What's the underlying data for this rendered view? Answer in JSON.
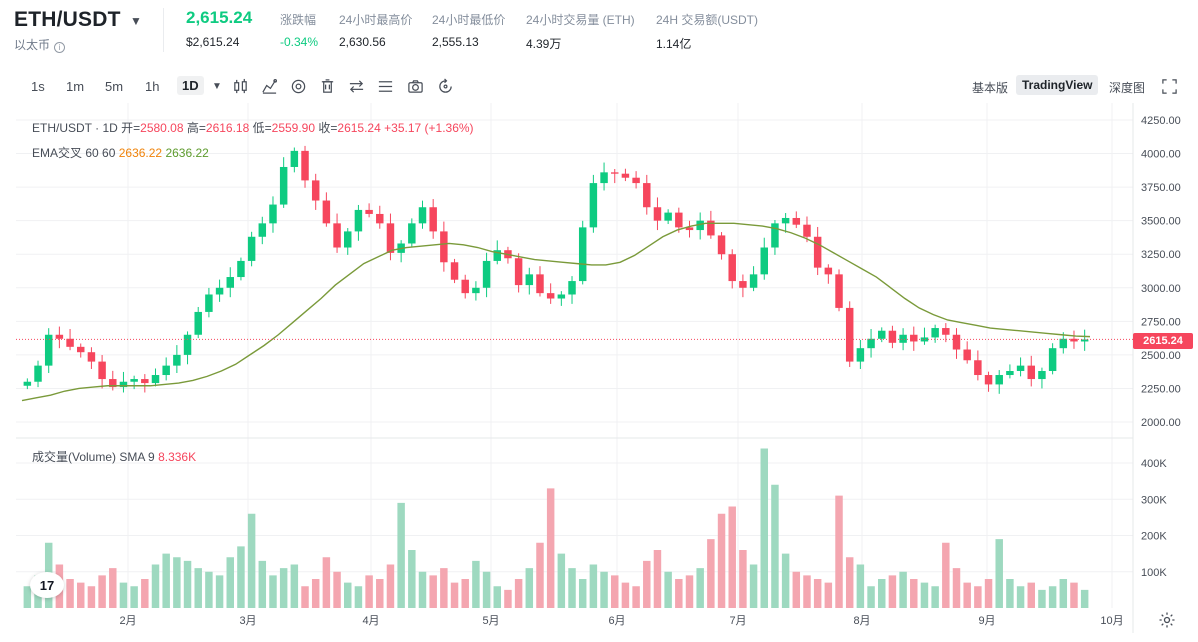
{
  "header": {
    "pair": "ETH/USDT",
    "pair_sub": "以太币",
    "last_price": "2,615.24",
    "last_price_usd": "$2,615.24",
    "stats": [
      {
        "label": "涨跌幅",
        "value": "-0.34%",
        "tone": "green"
      },
      {
        "label": "24小时最高价",
        "value": "2,630.56",
        "tone": "neutral"
      },
      {
        "label": "24小时最低价",
        "value": "2,555.13",
        "tone": "neutral"
      },
      {
        "label": "24小时交易量 (ETH)",
        "value": "4.39万",
        "tone": "neutral"
      },
      {
        "label": "24H 交易额(USDT)",
        "value": "1.14亿",
        "tone": "neutral"
      }
    ]
  },
  "toolbar": {
    "timeframes": [
      "1s",
      "1m",
      "5m",
      "1h",
      "1D"
    ],
    "active_timeframe": "1D",
    "icons": [
      "candle-style-icon",
      "indicators-icon",
      "settings-icon",
      "delete-icon",
      "compare-icon",
      "list-icon",
      "camera-icon",
      "replay-icon"
    ],
    "views": [
      "基本版",
      "TradingView",
      "深度图"
    ],
    "active_view": "TradingView"
  },
  "legend": {
    "symbol": "ETH/USDT · 1D",
    "open_label": "开=",
    "open": "2580.08",
    "high_label": "高=",
    "high": "2616.18",
    "low_label": "低=",
    "low": "2559.90",
    "close_label": "收=",
    "close": "2615.24",
    "change": "+35.17 (+1.36%)",
    "ema_label": "EMA交叉 60 60",
    "ema_a": "2636.22",
    "ema_b": "2636.22",
    "volume_label": "成交量(Volume)",
    "sma_label": "SMA 9",
    "sma_value": "8.336K"
  },
  "colors": {
    "up": "#0ecb81",
    "down": "#f6465d",
    "ema": "#7a9a3a",
    "grid": "#f0f1f3"
  },
  "chart_data": {
    "type": "candlestick",
    "price_axis_ticks": [
      "4250.00",
      "4000.00",
      "3750.00",
      "3500.00",
      "3250.00",
      "3000.00",
      "2750.00",
      "2500.00",
      "2250.00",
      "2000.00"
    ],
    "volume_axis_ticks": [
      "400K",
      "300K",
      "200K",
      "100K"
    ],
    "x_axis_labels": [
      "2月",
      "3月",
      "4月",
      "5月",
      "6月",
      "7月",
      "8月",
      "9月",
      "10月"
    ],
    "current_price_tag": "2615.24",
    "ylim": [
      2000,
      4250
    ],
    "volume_ylim": [
      0,
      400000
    ],
    "close_series": [
      2300,
      2420,
      2650,
      2620,
      2560,
      2520,
      2450,
      2320,
      2260,
      2300,
      2320,
      2290,
      2350,
      2420,
      2500,
      2650,
      2820,
      2950,
      3000,
      3080,
      3200,
      3380,
      3480,
      3620,
      3900,
      4020,
      3800,
      3650,
      3480,
      3300,
      3420,
      3580,
      3550,
      3480,
      3260,
      3330,
      3480,
      3600,
      3420,
      3190,
      3060,
      2960,
      3000,
      3200,
      3280,
      3220,
      3020,
      3100,
      2960,
      2920,
      2950,
      3050,
      3450,
      3780,
      3860,
      3850,
      3820,
      3780,
      3600,
      3500,
      3560,
      3450,
      3430,
      3500,
      3390,
      3250,
      3050,
      3000,
      3100,
      3300,
      3480,
      3520,
      3470,
      3380,
      3150,
      3100,
      2850,
      2450,
      2550,
      2620,
      2680,
      2590,
      2650,
      2600,
      2630,
      2700,
      2650,
      2540,
      2460,
      2350,
      2280,
      2350,
      2380,
      2420,
      2320,
      2380,
      2550,
      2620,
      2600,
      2615
    ],
    "ema_series": [
      2160,
      2180,
      2200,
      2230,
      2250,
      2260,
      2270,
      2270,
      2270,
      2270,
      2280,
      2290,
      2310,
      2340,
      2380,
      2430,
      2500,
      2570,
      2650,
      2740,
      2830,
      2920,
      3020,
      3100,
      3180,
      3230,
      3280,
      3300,
      3310,
      3320,
      3330,
      3320,
      3300,
      3270,
      3250,
      3230,
      3210,
      3200,
      3190,
      3180,
      3170,
      3170,
      3190,
      3240,
      3310,
      3380,
      3430,
      3460,
      3480,
      3480,
      3480,
      3470,
      3460,
      3440,
      3410,
      3370,
      3320,
      3260,
      3200,
      3140,
      3080,
      3000,
      2920,
      2850,
      2800,
      2760,
      2740,
      2720,
      2700,
      2690,
      2680,
      2670,
      2660,
      2650,
      2640,
      2636
    ],
    "volume_series": [
      60,
      90,
      180,
      120,
      80,
      70,
      60,
      90,
      110,
      70,
      60,
      80,
      120,
      150,
      140,
      130,
      110,
      100,
      90,
      140,
      170,
      260,
      130,
      90,
      110,
      120,
      60,
      80,
      140,
      100,
      70,
      60,
      90,
      80,
      120,
      290,
      160,
      100,
      90,
      110,
      70,
      80,
      130,
      100,
      60,
      50,
      80,
      110,
      180,
      330,
      150,
      110,
      80,
      120,
      100,
      90,
      70,
      60,
      130,
      160,
      100,
      80,
      90,
      110,
      190,
      260,
      280,
      160,
      120,
      440,
      340,
      150,
      100,
      90,
      80,
      70,
      310,
      140,
      120,
      60,
      80,
      90,
      100,
      80,
      70,
      60,
      180,
      110,
      70,
      60,
      80,
      190,
      80,
      60,
      70,
      50,
      60,
      80,
      70,
      50
    ]
  },
  "chart_labels": {
    "logo": "17"
  }
}
